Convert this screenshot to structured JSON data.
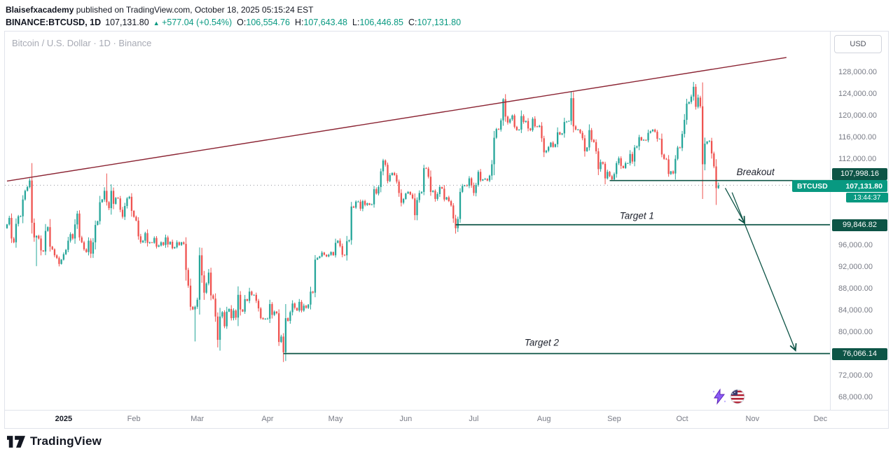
{
  "pub": {
    "author": "Blaisefxacademy",
    "text": "published on TradingView.com, October 18, 2025 05:15:24 EST"
  },
  "quote": {
    "symbol_interval": "BINANCE:BTCUSD, 1D",
    "last": "107,131.80",
    "direction_icon": "▲",
    "change": "+577.04 (+0.54%)",
    "open_label": "O:",
    "open": "106,554.76",
    "high_label": "H:",
    "high": "107,643.48",
    "low_label": "L:",
    "low": "106,446.85",
    "close_label": "C:",
    "close": "107,131.80"
  },
  "footer": {
    "brand": "TradingView"
  },
  "stickers": [
    "lightning-icon",
    "us-flag-icon"
  ],
  "chart_data": {
    "type": "candlestick",
    "title": "Bitcoin / U.S. Dollar · 1D · Binance",
    "symbol": "BINANCE:BTCUSD",
    "interval": "1D",
    "start_date": "2024-12-07",
    "end_date": "2025-10-17",
    "units": "closes in thousands of USD",
    "first_open": 99.2,
    "closes": [
      99.9,
      101.1,
      97.3,
      96.6,
      100.0,
      101.4,
      101.4,
      104.5,
      106.1,
      106.8,
      108.0,
      100.2,
      97.5,
      97.8,
      97.3,
      95.1,
      94.9,
      98.7,
      99.4,
      95.8,
      95.3,
      94.2,
      93.7,
      92.6,
      93.4,
      94.4,
      95.2,
      96.9,
      98.1,
      97.3,
      99.9,
      101.9,
      97.5,
      96.6,
      95.3,
      94.8,
      96.9,
      94.5,
      96.6,
      99.8,
      100.5,
      104.0,
      104.5,
      106.1,
      104.0,
      102.9,
      106.1,
      103.7,
      104.8,
      104.7,
      102.6,
      101.3,
      103.3,
      104.7,
      105.0,
      102.4,
      101.3,
      100.6,
      97.7,
      96.6,
      96.9,
      98.3,
      96.5,
      96.6,
      96.5,
      97.4,
      95.8,
      96.0,
      96.6,
      96.1,
      97.5,
      96.2,
      96.7,
      95.5,
      95.7,
      96.6,
      96.1,
      96.6,
      96.3,
      91.5,
      88.6,
      84.7,
      84.2,
      84.7,
      86.0,
      94.2,
      90.5,
      87.3,
      89.0,
      91.0,
      86.8,
      86.2,
      82.9,
      78.6,
      82.9,
      83.7,
      81.1,
      83.8,
      84.3,
      82.6,
      84.0,
      82.7,
      86.9,
      84.2,
      83.8,
      86.1,
      85.8,
      87.5,
      86.9,
      86.9,
      85.8,
      84.4,
      82.6,
      82.4,
      82.5,
      82.5,
      85.2,
      83.2,
      83.8,
      83.5,
      78.2,
      79.2,
      76.3,
      82.6,
      82.1,
      83.7,
      85.3,
      84.5,
      84.0,
      85.6,
      84.0,
      84.9,
      84.5,
      85.1,
      87.5,
      87.3,
      93.4,
      93.7,
      94.0,
      94.7,
      94.3,
      94.0,
      94.3,
      94.8,
      94.2,
      96.5,
      96.9,
      95.9,
      94.3,
      94.2,
      96.8,
      97.0,
      103.2,
      103.0,
      104.1,
      104.1,
      102.8,
      104.2,
      103.5,
      103.8,
      103.5,
      103.6,
      106.4,
      105.6,
      106.8,
      109.7,
      111.7,
      110.9,
      107.9,
      109.0,
      109.4,
      109.0,
      107.8,
      105.7,
      103.9,
      104.6,
      105.6,
      105.9,
      105.4,
      104.7,
      101.6,
      104.4,
      105.7,
      105.9,
      110.3,
      110.2,
      108.7,
      105.9,
      106.1,
      104.6,
      105.5,
      106.8,
      106.5,
      104.5,
      104.9,
      104.2,
      103.4,
      101.0,
      99.2,
      100.9,
      105.9,
      107.0,
      107.1,
      107.0,
      108.4,
      107.1,
      105.7,
      107.2,
      109.6,
      108.0,
      108.2,
      108.3,
      108.0,
      108.9,
      111.0,
      115.9,
      117.5,
      117.4,
      119.1,
      123.0,
      119.8,
      118.7,
      119.3,
      120.0,
      117.9,
      117.3,
      117.4,
      119.9,
      118.8,
      119.0,
      117.6,
      117.3,
      119.4,
      118.0,
      117.9,
      118.1,
      115.8,
      113.2,
      113.5,
      114.2,
      115.0,
      114.2,
      114.7,
      116.9,
      116.5,
      116.7,
      118.8,
      118.9,
      119.0,
      123.2,
      118.0,
      117.4,
      117.4,
      116.8,
      115.8,
      113.4,
      114.1,
      117.3,
      115.5,
      115.1,
      113.4,
      110.1,
      111.4,
      111.1,
      108.4,
      109.6,
      108.8,
      108.2,
      109.2,
      111.2,
      112.1,
      110.7,
      110.3,
      111.2,
      111.2,
      112.9,
      111.5,
      114.1,
      114.3,
      116.0,
      115.4,
      115.5,
      115.4,
      116.8,
      117.1,
      117.4,
      117.0,
      115.7,
      115.7,
      112.8,
      112.0,
      111.9,
      109.2,
      109.7,
      109.3,
      112.0,
      114.1,
      114.0,
      116.6,
      119.2,
      122.2,
      122.5,
      123.5,
      125.3,
      121.6,
      123.3,
      121.7,
      111.0,
      114.8,
      115.2,
      115.3,
      113.0,
      110.6,
      106.6,
      107.1
    ],
    "spike_highs": {
      "10": 108.4,
      "44": 109.3,
      "166": 112.0,
      "219": 123.2,
      "249": 124.5,
      "303": 126.2,
      "314": 107.64
    },
    "spike_lows": {
      "13": 92.2,
      "83": 78.3,
      "93": 77.2,
      "94": 76.6,
      "122": 74.5,
      "198": 98.2,
      "264": 107.3,
      "292": 108.7,
      "307": 104.6,
      "313": 103.5,
      "314": 106.45
    },
    "last_candle": {
      "open": 106554.76,
      "high": 107643.48,
      "low": 106446.85,
      "close": 107131.8
    },
    "current": {
      "symbol": "BTCUSD",
      "price": 107131.8,
      "label": "107,131.80",
      "countdown": "13:44:37"
    },
    "levels": [
      {
        "name": "Breakout",
        "price": 107998.16,
        "label": "107,998.16",
        "from_day": 266,
        "badge_dy": -10,
        "text_day": 322,
        "text_price": 109500,
        "text_anchor": "start"
      },
      {
        "name": "Target 1",
        "price": 99846.82,
        "label": "99,846.82",
        "from_day": 198,
        "badge_dy": 0,
        "text_day": 278,
        "text_price": 101400,
        "text_anchor": "middle"
      },
      {
        "name": "Target 2",
        "price": 76066.14,
        "label": "76,066.14",
        "from_day": 122,
        "badge_dy": 0,
        "text_day": 236,
        "text_price": 78000,
        "text_anchor": "middle"
      }
    ],
    "trendline": {
      "x1_day": 0,
      "p1": 107900,
      "x2_day": 344,
      "p2": 130700
    },
    "arrows": [
      {
        "x1_day": 317,
        "p1": 106600,
        "x2_day": 325.5,
        "p2": 100150
      },
      {
        "x1_day": 320,
        "p1": 105800,
        "x2_day": 348,
        "p2": 76650
      }
    ],
    "axis": {
      "currency": "USD",
      "price_labels": [
        {
          "value": 128000,
          "label": "128,000.00"
        },
        {
          "value": 124000,
          "label": "124,000.00"
        },
        {
          "value": 120000,
          "label": "120,000.00"
        },
        {
          "value": 116000,
          "label": "116,000.00"
        },
        {
          "value": 112000,
          "label": "112,000.00"
        },
        {
          "value": 96000,
          "label": "96,000.00"
        },
        {
          "value": 92000,
          "label": "92,000.00"
        },
        {
          "value": 88000,
          "label": "88,000.00"
        },
        {
          "value": 84000,
          "label": "84,000.00"
        },
        {
          "value": 80000,
          "label": "80,000.00"
        },
        {
          "value": 72000,
          "label": "72,000.00"
        },
        {
          "value": 68000,
          "label": "68,000.00"
        }
      ],
      "time_labels": [
        {
          "label": "2025",
          "day": 25,
          "year": true
        },
        {
          "label": "Feb",
          "day": 56
        },
        {
          "label": "Mar",
          "day": 84
        },
        {
          "label": "Apr",
          "day": 115
        },
        {
          "label": "May",
          "day": 145
        },
        {
          "label": "Jun",
          "day": 176
        },
        {
          "label": "Jul",
          "day": 206
        },
        {
          "label": "Aug",
          "day": 237
        },
        {
          "label": "Sep",
          "day": 268
        },
        {
          "label": "Oct",
          "day": 298
        },
        {
          "label": "Nov",
          "day": 329
        },
        {
          "label": "Dec",
          "day": 359
        }
      ]
    },
    "colors": {
      "up": "#26a69a",
      "down": "#ef5350",
      "trendline": "#8b2433",
      "level": "#0d5446",
      "current_badge": "#089981",
      "axis_text": "#787b86"
    }
  }
}
